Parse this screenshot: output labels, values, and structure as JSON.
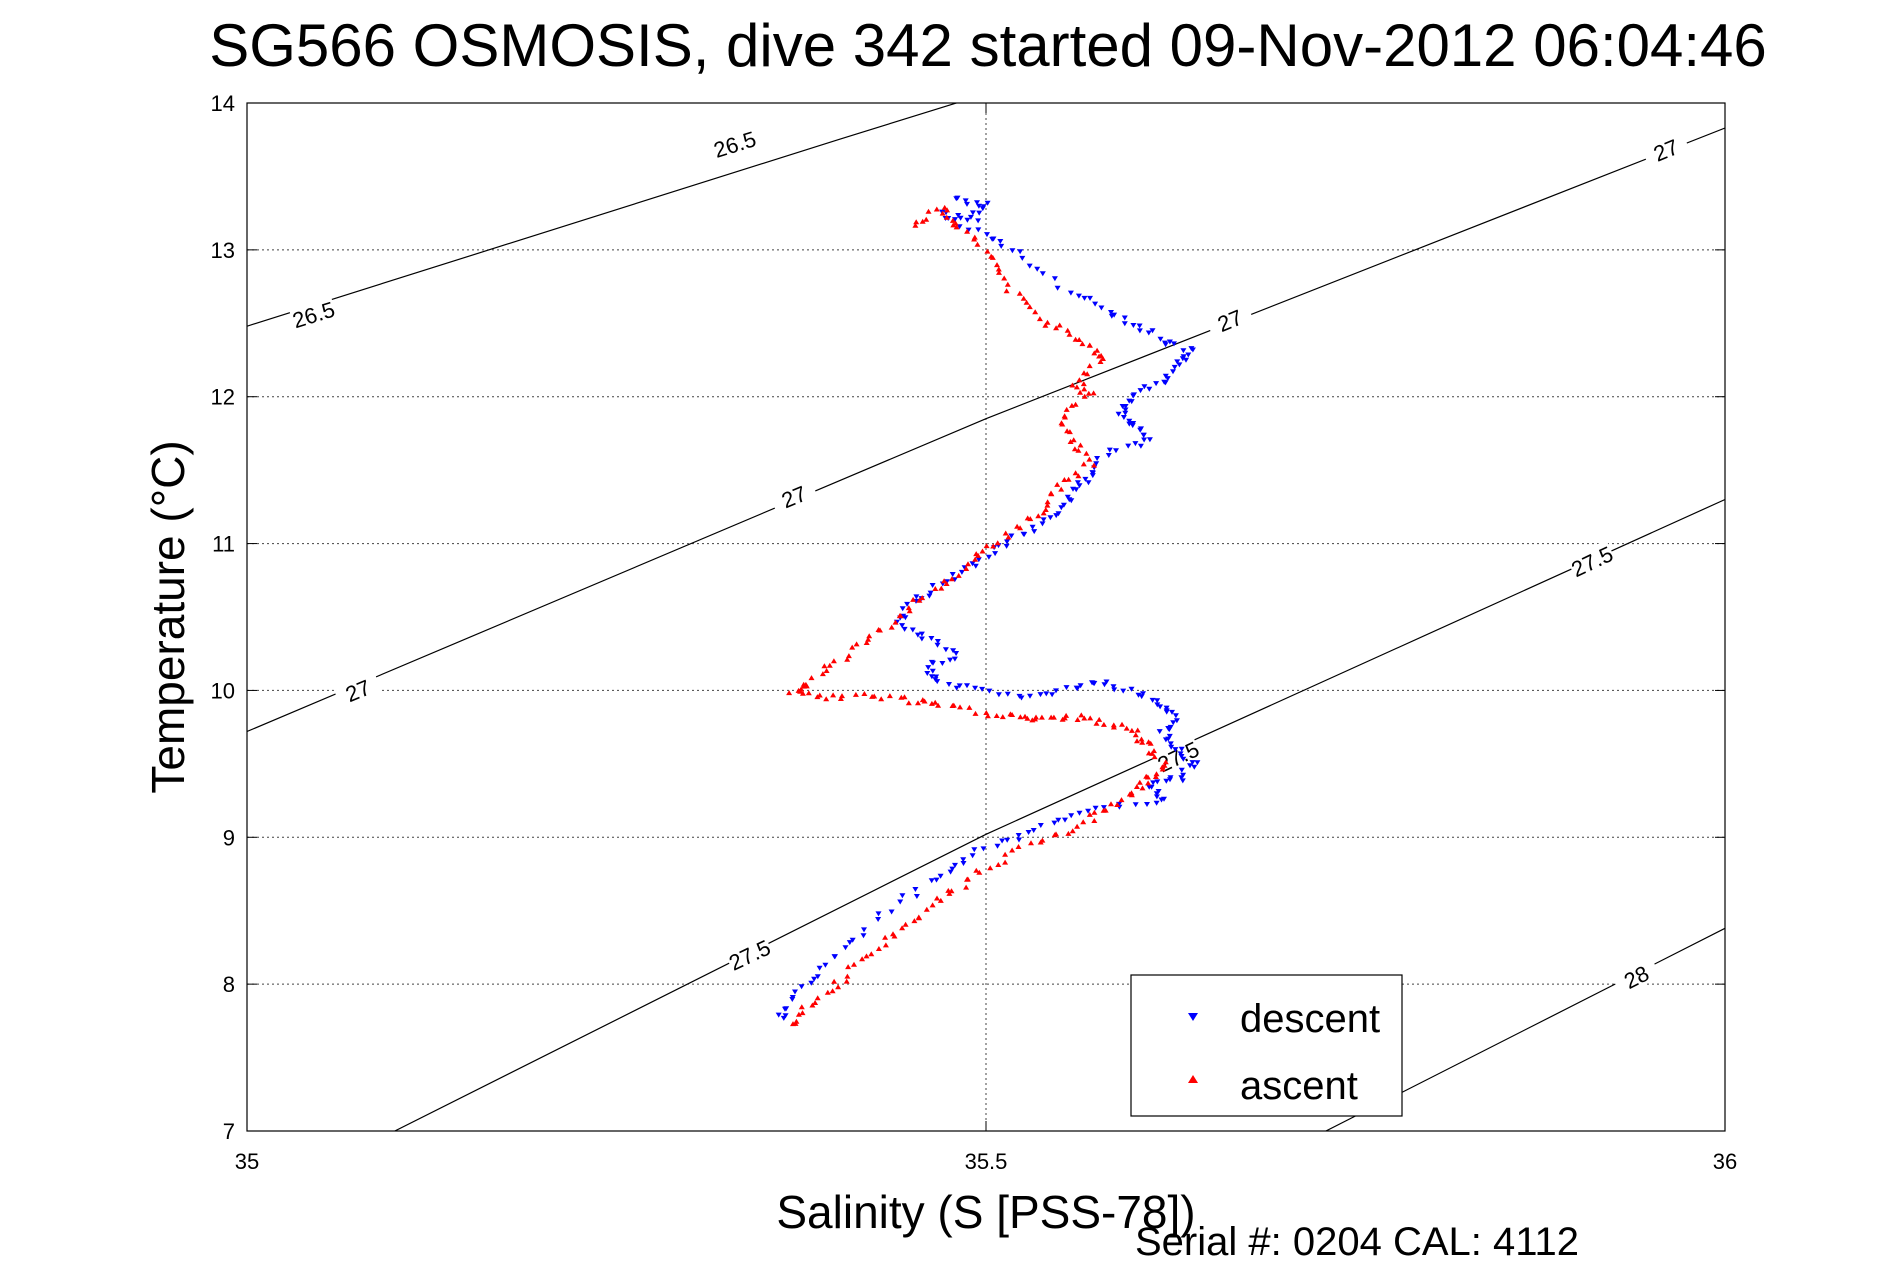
{
  "chart_data": {
    "type": "scatter",
    "title": "SG566 OSMOSIS, dive 342 started 09-Nov-2012 06:04:46",
    "xlabel": "Salinity (S [PSS-78])",
    "ylabel": "Temperature (°C)",
    "xlim": [
      35,
      36
    ],
    "ylim": [
      7,
      14
    ],
    "xticks": [
      "35",
      "35.5",
      "36"
    ],
    "yticks": [
      "7",
      "8",
      "9",
      "10",
      "11",
      "12",
      "13",
      "14"
    ],
    "grid": true,
    "legend_position": "bottom-right",
    "footer": "Serial #: 0204  CAL: 4112",
    "density_contours": [
      {
        "value": "26.5",
        "points": [
          [
            35.0,
            12.48
          ],
          [
            35.4,
            13.75
          ],
          [
            35.8,
            15.0
          ]
        ],
        "labels": [
          [
            35.045,
            12.56
          ],
          [
            35.33,
            13.72
          ]
        ]
      },
      {
        "value": "27",
        "points": [
          [
            35.0,
            9.72
          ],
          [
            35.5,
            11.85
          ],
          [
            36.0,
            13.83
          ]
        ],
        "labels": [
          [
            35.075,
            10.0
          ],
          [
            35.37,
            11.32
          ],
          [
            35.665,
            12.52
          ],
          [
            35.96,
            13.68
          ]
        ]
      },
      {
        "value": "27.5",
        "points": [
          [
            35.1,
            7.0
          ],
          [
            35.5,
            9.02
          ],
          [
            36.0,
            11.3
          ]
        ],
        "labels": [
          [
            35.34,
            8.2
          ],
          [
            35.63,
            9.55
          ],
          [
            35.91,
            10.88
          ]
        ]
      },
      {
        "value": "28",
        "points": [
          [
            35.73,
            7.0
          ],
          [
            36.0,
            8.38
          ]
        ],
        "labels": [
          [
            35.94,
            8.05
          ]
        ]
      }
    ],
    "series": [
      {
        "name": "descent",
        "color": "#0000ff",
        "marker": "triangle-down",
        "x": [
          35.48,
          35.5,
          35.49,
          35.47,
          35.5,
          35.52,
          35.55,
          35.58,
          35.6,
          35.62,
          35.64,
          35.63,
          35.62,
          35.6,
          35.59,
          35.6,
          35.61,
          35.58,
          35.57,
          35.56,
          35.55,
          35.53,
          35.51,
          35.49,
          35.47,
          35.45,
          35.44,
          35.46,
          35.48,
          35.46,
          35.47,
          35.5,
          35.53,
          35.56,
          35.58,
          35.6,
          35.62,
          35.63,
          35.62,
          35.63,
          35.64,
          35.63,
          35.61,
          35.62,
          35.58,
          35.55,
          35.52,
          35.49,
          35.47,
          35.44,
          35.41,
          35.39,
          35.37,
          35.36
        ],
        "y": [
          13.35,
          13.3,
          13.2,
          13.25,
          13.1,
          12.98,
          12.75,
          12.6,
          12.5,
          12.38,
          12.3,
          12.2,
          12.1,
          12.0,
          11.9,
          11.8,
          11.7,
          11.6,
          11.45,
          11.35,
          11.2,
          11.1,
          10.98,
          10.85,
          10.72,
          10.6,
          10.45,
          10.35,
          10.25,
          10.15,
          10.05,
          10.0,
          9.95,
          10.02,
          10.05,
          9.98,
          9.9,
          9.8,
          9.7,
          9.6,
          9.5,
          9.4,
          9.35,
          9.25,
          9.2,
          9.1,
          9.0,
          8.88,
          8.75,
          8.55,
          8.3,
          8.1,
          7.9,
          7.75
        ]
      },
      {
        "name": "ascent",
        "color": "#ff0000",
        "marker": "triangle-up",
        "x": [
          35.45,
          35.47,
          35.48,
          35.5,
          35.51,
          35.53,
          35.55,
          35.57,
          35.58,
          35.56,
          35.57,
          35.55,
          35.56,
          35.57,
          35.55,
          35.54,
          35.52,
          35.5,
          35.48,
          35.46,
          35.44,
          35.42,
          35.4,
          35.38,
          35.37,
          35.39,
          35.42,
          35.45,
          35.47,
          35.5,
          35.52,
          35.54,
          35.56,
          35.58,
          35.6,
          35.61,
          35.62,
          35.61,
          35.6,
          35.58,
          35.56,
          35.53,
          35.5,
          35.48,
          35.46,
          35.44,
          35.42,
          35.4,
          35.38,
          35.37
        ],
        "y": [
          13.15,
          13.3,
          13.18,
          13.0,
          12.8,
          12.6,
          12.45,
          12.35,
          12.25,
          12.1,
          12.02,
          11.85,
          11.7,
          11.55,
          11.4,
          11.25,
          11.1,
          10.95,
          10.8,
          10.65,
          10.5,
          10.35,
          10.2,
          10.05,
          10.0,
          9.95,
          9.97,
          9.93,
          9.9,
          9.85,
          9.82,
          9.8,
          9.82,
          9.78,
          9.72,
          9.62,
          9.5,
          9.4,
          9.3,
          9.18,
          9.05,
          8.95,
          8.8,
          8.65,
          8.5,
          8.35,
          8.2,
          8.0,
          7.85,
          7.72
        ]
      }
    ]
  }
}
